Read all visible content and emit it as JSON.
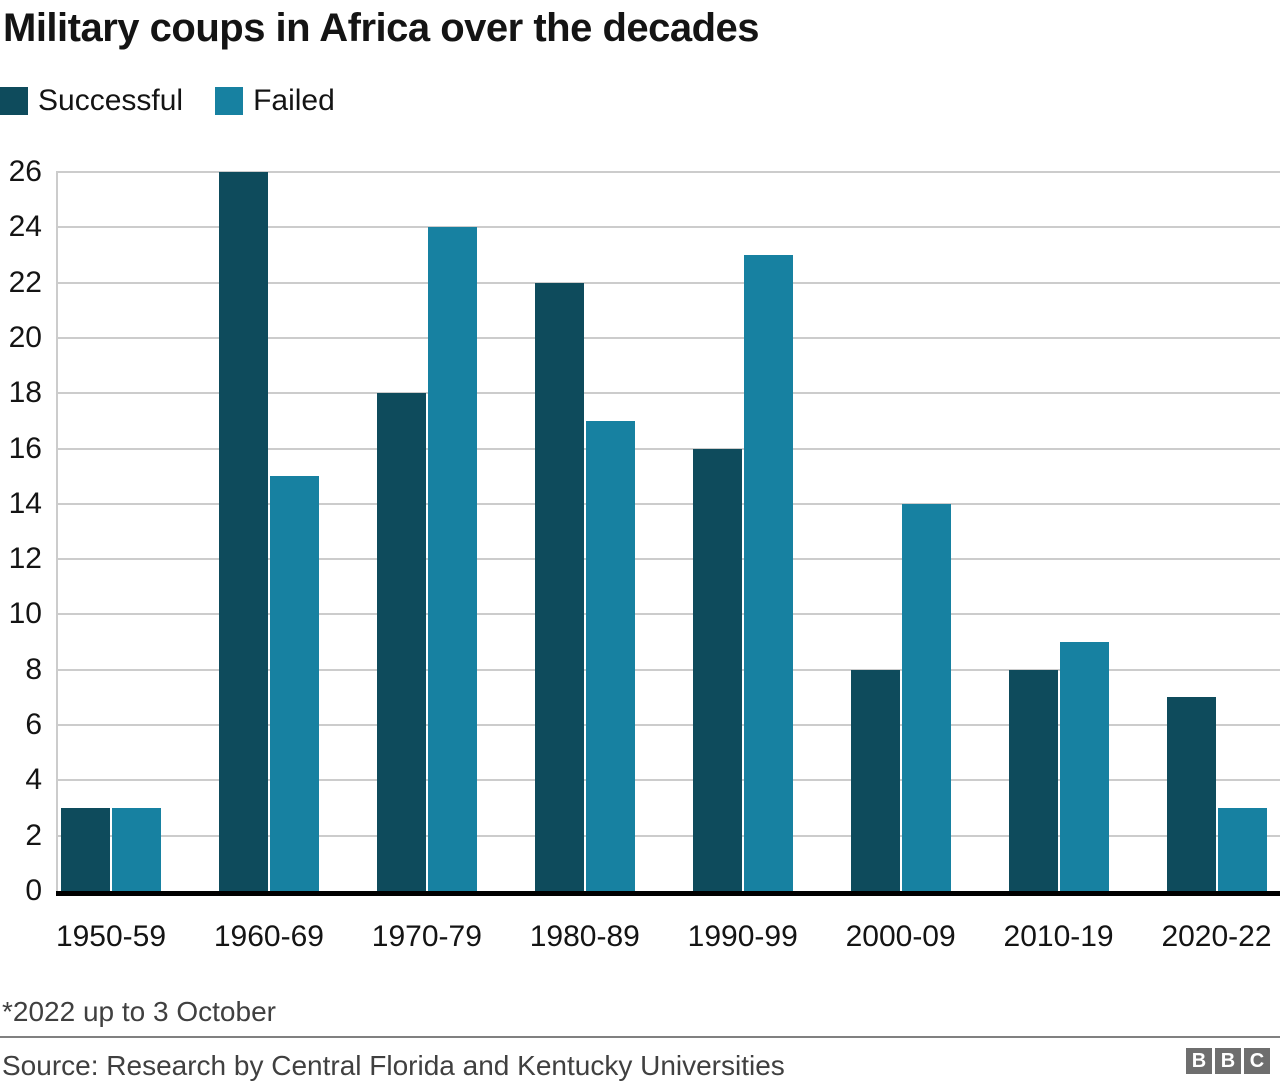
{
  "title": "Military coups in Africa over the decades",
  "legend": [
    {
      "label": "Successful",
      "color": "#0e4b5c"
    },
    {
      "label": "Failed",
      "color": "#1781a1"
    }
  ],
  "chart_data": {
    "type": "bar",
    "title": "Military coups in Africa over the decades",
    "categories": [
      "1950-59",
      "1960-69",
      "1970-79",
      "1980-89",
      "1990-99",
      "2000-09",
      "2010-19",
      "2020-22"
    ],
    "series": [
      {
        "name": "Successful",
        "color": "#0e4b5c",
        "values": [
          3,
          26,
          18,
          22,
          16,
          8,
          8,
          7
        ]
      },
      {
        "name": "Failed",
        "color": "#1781a1",
        "values": [
          3,
          15,
          24,
          17,
          23,
          14,
          9,
          3
        ]
      }
    ],
    "xlabel": "",
    "ylabel": "",
    "ylim": [
      0,
      26
    ],
    "ytick_step": 2,
    "yticks": [
      0,
      2,
      4,
      6,
      8,
      10,
      12,
      14,
      16,
      18,
      20,
      22,
      24,
      26
    ],
    "grid": true,
    "gridline_color": "#cccccc",
    "axis_color": "#000000",
    "legend_position": "top-left"
  },
  "footnote": "*2022 up to 3 October",
  "source": "Source: Research by Central Florida and Kentucky Universities",
  "logo": {
    "blocks": [
      "B",
      "B",
      "C"
    ],
    "block_color": "#6e6e6e",
    "letter_color": "#ffffff"
  }
}
